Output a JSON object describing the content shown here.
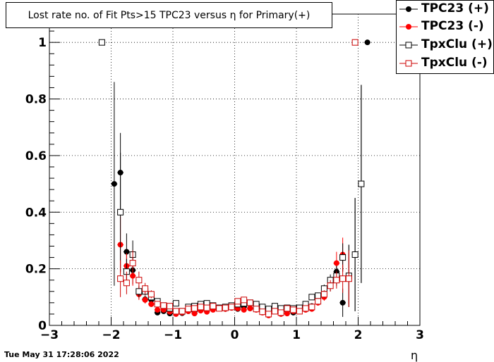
{
  "chart_data": {
    "type": "scatter",
    "title": "Lost rate no. of Fit Pts>15 TPC23 versus η for Primary(+)",
    "xlabel": "η",
    "ylabel": "",
    "xlim": [
      -3,
      3
    ],
    "ylim": [
      0,
      1.0
    ],
    "xticks": [
      -3,
      -2,
      -1,
      0,
      1,
      2,
      3
    ],
    "yticks": [
      0,
      0.2,
      0.4,
      0.6,
      0.8,
      1
    ],
    "xtick_labels": [
      "−3",
      "−2",
      "−1",
      "0",
      "1",
      "2",
      "3"
    ],
    "ytick_labels": [
      "0",
      "0.2",
      "0.4",
      "0.6",
      "0.8",
      "1"
    ],
    "grid": true,
    "legend_position": "top-right",
    "series": [
      {
        "name": "TPC23 (+)",
        "marker": "filled-circle",
        "color": "#000000",
        "points": [
          [
            -1.95,
            0.5,
            0.36
          ],
          [
            -1.85,
            0.54,
            0.14
          ],
          [
            -1.75,
            0.26,
            0.065
          ],
          [
            -1.65,
            0.195,
            0.05
          ],
          [
            -1.55,
            0.115,
            0.02
          ],
          [
            -1.45,
            0.092,
            0.013
          ],
          [
            -1.35,
            0.09,
            0.011
          ],
          [
            -1.25,
            0.045,
            0.008
          ],
          [
            -1.15,
            0.05,
            0.007
          ],
          [
            -1.05,
            0.042,
            0.006
          ],
          [
            -0.95,
            0.048,
            0.006
          ],
          [
            -0.85,
            0.043,
            0.006
          ],
          [
            -0.75,
            0.05,
            0.006
          ],
          [
            -0.65,
            0.048,
            0.006
          ],
          [
            -0.55,
            0.055,
            0.006
          ],
          [
            -0.45,
            0.052,
            0.006
          ],
          [
            -0.35,
            0.06,
            0.006
          ],
          [
            -0.25,
            0.062,
            0.006
          ],
          [
            -0.15,
            0.058,
            0.006
          ],
          [
            -0.05,
            0.062,
            0.006
          ],
          [
            0.05,
            0.058,
            0.006
          ],
          [
            0.15,
            0.065,
            0.006
          ],
          [
            0.25,
            0.06,
            0.006
          ],
          [
            0.35,
            0.062,
            0.006
          ],
          [
            0.45,
            0.058,
            0.006
          ],
          [
            0.55,
            0.048,
            0.006
          ],
          [
            0.65,
            0.052,
            0.006
          ],
          [
            0.75,
            0.045,
            0.006
          ],
          [
            0.85,
            0.05,
            0.006
          ],
          [
            0.95,
            0.045,
            0.006
          ],
          [
            1.05,
            0.05,
            0.006
          ],
          [
            1.15,
            0.062,
            0.007
          ],
          [
            1.25,
            0.068,
            0.008
          ],
          [
            1.35,
            0.095,
            0.011
          ],
          [
            1.45,
            0.12,
            0.014
          ],
          [
            1.55,
            0.14,
            0.02
          ],
          [
            1.65,
            0.19,
            0.04
          ],
          [
            1.75,
            0.08,
            0.05
          ],
          [
            1.85,
            0.175,
            0.11
          ],
          [
            1.95,
            0.25,
            0.2
          ],
          [
            2.05,
            0.5,
            0.35
          ],
          [
            2.15,
            1.0,
            0
          ]
        ]
      },
      {
        "name": "TPC23 (-)",
        "marker": "filled-circle",
        "color": "#ff0000",
        "points": [
          [
            -1.85,
            0.285,
            0.1
          ],
          [
            -1.75,
            0.21,
            0.045
          ],
          [
            -1.65,
            0.175,
            0.035
          ],
          [
            -1.55,
            0.11,
            0.02
          ],
          [
            -1.45,
            0.09,
            0.013
          ],
          [
            -1.35,
            0.075,
            0.01
          ],
          [
            -1.25,
            0.055,
            0.008
          ],
          [
            -1.15,
            0.055,
            0.007
          ],
          [
            -1.05,
            0.048,
            0.006
          ],
          [
            -0.95,
            0.04,
            0.006
          ],
          [
            -0.85,
            0.045,
            0.006
          ],
          [
            -0.75,
            0.05,
            0.006
          ],
          [
            -0.65,
            0.042,
            0.006
          ],
          [
            -0.55,
            0.052,
            0.006
          ],
          [
            -0.45,
            0.048,
            0.006
          ],
          [
            -0.35,
            0.055,
            0.006
          ],
          [
            -0.25,
            0.06,
            0.006
          ],
          [
            -0.15,
            0.058,
            0.006
          ],
          [
            -0.05,
            0.062,
            0.006
          ],
          [
            0.05,
            0.06,
            0.006
          ],
          [
            0.15,
            0.055,
            0.006
          ],
          [
            0.25,
            0.06,
            0.006
          ],
          [
            0.35,
            0.055,
            0.006
          ],
          [
            0.45,
            0.045,
            0.006
          ],
          [
            0.55,
            0.035,
            0.006
          ],
          [
            0.65,
            0.05,
            0.006
          ],
          [
            0.75,
            0.04,
            0.006
          ],
          [
            0.85,
            0.042,
            0.006
          ],
          [
            0.95,
            0.05,
            0.006
          ],
          [
            1.05,
            0.05,
            0.006
          ],
          [
            1.15,
            0.055,
            0.007
          ],
          [
            1.25,
            0.058,
            0.008
          ],
          [
            1.35,
            0.08,
            0.01
          ],
          [
            1.45,
            0.1,
            0.013
          ],
          [
            1.55,
            0.15,
            0.02
          ],
          [
            1.65,
            0.22,
            0.04
          ],
          [
            1.75,
            0.25,
            0.06
          ],
          [
            1.85,
            0.165,
            0.09
          ]
        ]
      },
      {
        "name": "TpxClu (+)",
        "marker": "open-square",
        "color": "#000000",
        "points": [
          [
            -2.15,
            1.0,
            0
          ],
          [
            -1.85,
            0.4,
            0.21
          ],
          [
            -1.75,
            0.19,
            0.045
          ],
          [
            -1.65,
            0.25,
            0.05
          ],
          [
            -1.55,
            0.12,
            0.02
          ],
          [
            -1.45,
            0.12,
            0.014
          ],
          [
            -1.35,
            0.1,
            0.012
          ],
          [
            -1.25,
            0.085,
            0.009
          ],
          [
            -1.15,
            0.07,
            0.008
          ],
          [
            -1.05,
            0.06,
            0.007
          ],
          [
            -0.95,
            0.078,
            0.007
          ],
          [
            -0.85,
            0.05,
            0.006
          ],
          [
            -0.75,
            0.065,
            0.006
          ],
          [
            -0.65,
            0.068,
            0.006
          ],
          [
            -0.55,
            0.075,
            0.006
          ],
          [
            -0.45,
            0.078,
            0.006
          ],
          [
            -0.35,
            0.07,
            0.006
          ],
          [
            -0.25,
            0.062,
            0.006
          ],
          [
            -0.15,
            0.065,
            0.006
          ],
          [
            -0.05,
            0.07,
            0.006
          ],
          [
            0.05,
            0.075,
            0.006
          ],
          [
            0.15,
            0.078,
            0.006
          ],
          [
            0.25,
            0.08,
            0.006
          ],
          [
            0.35,
            0.075,
            0.006
          ],
          [
            0.45,
            0.065,
            0.006
          ],
          [
            0.55,
            0.058,
            0.006
          ],
          [
            0.65,
            0.068,
            0.006
          ],
          [
            0.75,
            0.06,
            0.006
          ],
          [
            0.85,
            0.062,
            0.006
          ],
          [
            0.95,
            0.06,
            0.006
          ],
          [
            1.05,
            0.062,
            0.006
          ],
          [
            1.15,
            0.075,
            0.007
          ],
          [
            1.25,
            0.1,
            0.008
          ],
          [
            1.35,
            0.105,
            0.011
          ],
          [
            1.45,
            0.13,
            0.014
          ],
          [
            1.55,
            0.16,
            0.02
          ],
          [
            1.65,
            0.175,
            0.035
          ],
          [
            1.75,
            0.24,
            0.05
          ],
          [
            1.85,
            0.175,
            0.11
          ],
          [
            1.95,
            0.25,
            0.2
          ],
          [
            2.05,
            0.5,
            0.35
          ]
        ]
      },
      {
        "name": "TpxClu (-)",
        "marker": "open-square",
        "color": "#cc0000",
        "points": [
          [
            -1.85,
            0.165,
            0.065
          ],
          [
            -1.75,
            0.15,
            0.04
          ],
          [
            -1.65,
            0.22,
            0.045
          ],
          [
            -1.55,
            0.16,
            0.03
          ],
          [
            -1.45,
            0.13,
            0.02
          ],
          [
            -1.35,
            0.11,
            0.014
          ],
          [
            -1.25,
            0.075,
            0.009
          ],
          [
            -1.15,
            0.07,
            0.008
          ],
          [
            -1.05,
            0.068,
            0.007
          ],
          [
            -0.95,
            0.05,
            0.006
          ],
          [
            -0.85,
            0.05,
            0.006
          ],
          [
            -0.75,
            0.058,
            0.006
          ],
          [
            -0.65,
            0.06,
            0.006
          ],
          [
            -0.55,
            0.065,
            0.006
          ],
          [
            -0.45,
            0.062,
            0.006
          ],
          [
            -0.35,
            0.068,
            0.006
          ],
          [
            -0.25,
            0.06,
            0.006
          ],
          [
            -0.15,
            0.062,
            0.006
          ],
          [
            -0.05,
            0.065,
            0.006
          ],
          [
            0.05,
            0.085,
            0.006
          ],
          [
            0.15,
            0.09,
            0.006
          ],
          [
            0.25,
            0.08,
            0.006
          ],
          [
            0.35,
            0.058,
            0.006
          ],
          [
            0.45,
            0.048,
            0.006
          ],
          [
            0.55,
            0.04,
            0.006
          ],
          [
            0.65,
            0.05,
            0.006
          ],
          [
            0.75,
            0.045,
            0.006
          ],
          [
            0.85,
            0.06,
            0.006
          ],
          [
            0.95,
            0.055,
            0.006
          ],
          [
            1.05,
            0.05,
            0.006
          ],
          [
            1.15,
            0.06,
            0.007
          ],
          [
            1.25,
            0.065,
            0.008
          ],
          [
            1.35,
            0.085,
            0.011
          ],
          [
            1.45,
            0.11,
            0.014
          ],
          [
            1.55,
            0.14,
            0.02
          ],
          [
            1.65,
            0.16,
            0.03
          ],
          [
            1.75,
            0.165,
            0.05
          ],
          [
            1.85,
            0.165,
            0.1
          ],
          [
            1.95,
            1.0,
            0
          ]
        ]
      }
    ]
  },
  "timestamp": "Tue May 31 17:28:06 2022"
}
